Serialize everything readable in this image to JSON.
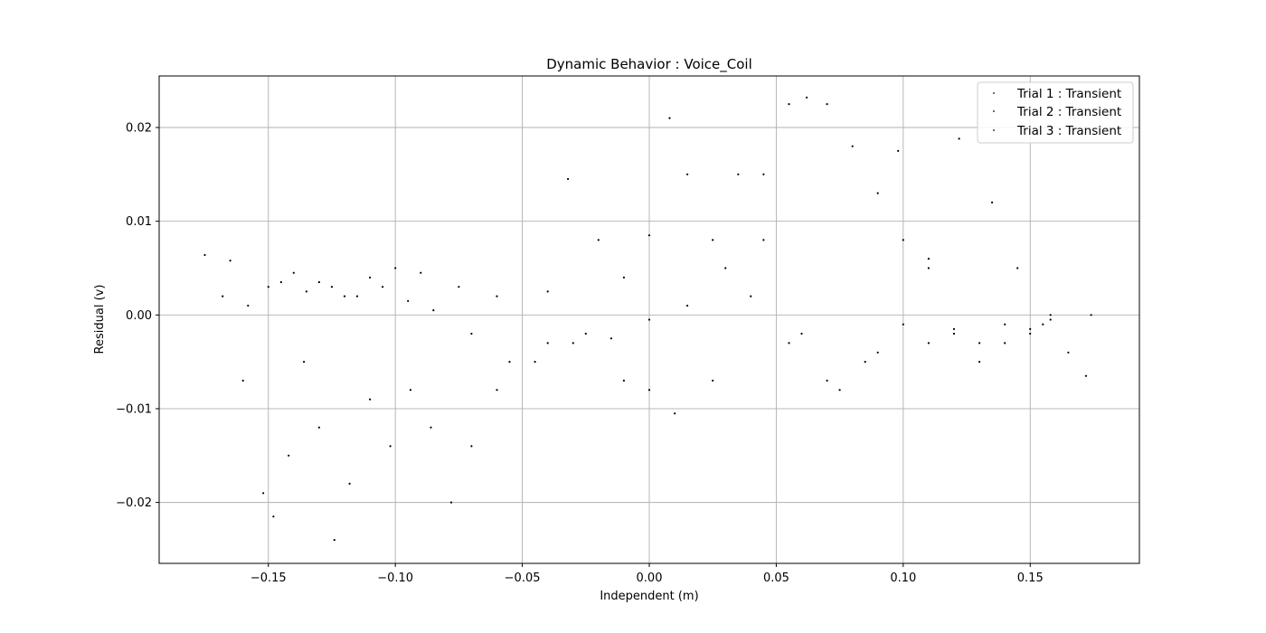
{
  "chart_data": {
    "type": "scatter",
    "title": "Dynamic Behavior : Voice_Coil",
    "xlabel": "Independent (m)",
    "ylabel": "Residual (v)",
    "xlim": [
      -0.193,
      0.193
    ],
    "ylim": [
      -0.0265,
      0.0255
    ],
    "grid": true,
    "legend_position": "top-right",
    "marker": "dot",
    "color": "#000000",
    "x_ticks": [
      {
        "value": -0.15,
        "label": "−0.15"
      },
      {
        "value": -0.1,
        "label": "−0.10"
      },
      {
        "value": -0.05,
        "label": "−0.05"
      },
      {
        "value": 0.0,
        "label": "0.00"
      },
      {
        "value": 0.05,
        "label": "0.05"
      },
      {
        "value": 0.1,
        "label": "0.10"
      },
      {
        "value": 0.15,
        "label": "0.15"
      }
    ],
    "y_ticks": [
      {
        "value": -0.02,
        "label": "−0.02"
      },
      {
        "value": -0.01,
        "label": "−0.01"
      },
      {
        "value": 0.0,
        "label": "0.00"
      },
      {
        "value": 0.01,
        "label": "0.01"
      },
      {
        "value": 0.02,
        "label": "0.02"
      }
    ],
    "series": [
      {
        "name": "Trial 1 : Transient",
        "points": [
          [
            -0.175,
            0.0064
          ],
          [
            -0.168,
            0.002
          ],
          [
            -0.16,
            -0.007
          ],
          [
            -0.152,
            -0.019
          ],
          [
            -0.148,
            -0.0215
          ],
          [
            -0.142,
            -0.015
          ],
          [
            -0.136,
            -0.005
          ],
          [
            -0.13,
            -0.012
          ],
          [
            -0.124,
            -0.024
          ],
          [
            -0.118,
            -0.018
          ],
          [
            -0.11,
            -0.009
          ],
          [
            -0.102,
            -0.014
          ],
          [
            -0.094,
            -0.008
          ],
          [
            -0.086,
            -0.012
          ],
          [
            -0.078,
            -0.02
          ],
          [
            -0.07,
            -0.014
          ],
          [
            -0.06,
            -0.008
          ],
          [
            -0.045,
            -0.005
          ],
          [
            -0.03,
            -0.003
          ],
          [
            -0.015,
            -0.0025
          ],
          [
            0.0,
            -0.0005
          ],
          [
            0.015,
            0.001
          ],
          [
            0.03,
            0.005
          ],
          [
            0.045,
            0.015
          ],
          [
            0.055,
            0.0225
          ],
          [
            0.062,
            0.0232
          ],
          [
            0.07,
            0.0225
          ],
          [
            0.08,
            0.018
          ],
          [
            0.09,
            0.013
          ],
          [
            0.1,
            0.008
          ],
          [
            0.11,
            0.005
          ],
          [
            0.122,
            0.0188
          ],
          [
            0.135,
            0.012
          ],
          [
            0.145,
            0.005
          ],
          [
            0.155,
            -0.001
          ],
          [
            0.165,
            -0.004
          ],
          [
            0.172,
            -0.0065
          ],
          [
            0.174,
            0.0
          ]
        ]
      },
      {
        "name": "Trial 2 : Transient",
        "points": [
          [
            -0.165,
            0.0058
          ],
          [
            -0.158,
            0.001
          ],
          [
            -0.15,
            0.003
          ],
          [
            -0.14,
            0.0045
          ],
          [
            -0.13,
            0.0035
          ],
          [
            -0.12,
            0.002
          ],
          [
            -0.11,
            0.004
          ],
          [
            -0.1,
            0.005
          ],
          [
            -0.09,
            0.0045
          ],
          [
            -0.075,
            0.003
          ],
          [
            -0.06,
            0.002
          ],
          [
            -0.04,
            0.0025
          ],
          [
            -0.032,
            0.0145
          ],
          [
            -0.02,
            0.008
          ],
          [
            -0.01,
            0.004
          ],
          [
            0.0,
            0.0085
          ],
          [
            0.008,
            0.021
          ],
          [
            0.015,
            0.015
          ],
          [
            0.025,
            0.008
          ],
          [
            0.04,
            0.002
          ],
          [
            0.055,
            -0.003
          ],
          [
            0.07,
            -0.007
          ],
          [
            0.085,
            -0.005
          ],
          [
            0.098,
            0.0175
          ],
          [
            0.11,
            0.006
          ],
          [
            0.12,
            -0.002
          ],
          [
            0.13,
            -0.005
          ],
          [
            0.14,
            -0.003
          ],
          [
            0.15,
            -0.0015
          ],
          [
            0.158,
            0.0
          ]
        ]
      },
      {
        "name": "Trial 3 : Transient",
        "points": [
          [
            -0.145,
            0.0035
          ],
          [
            -0.135,
            0.0025
          ],
          [
            -0.125,
            0.003
          ],
          [
            -0.115,
            0.002
          ],
          [
            -0.105,
            0.003
          ],
          [
            -0.095,
            0.0015
          ],
          [
            -0.085,
            0.0005
          ],
          [
            -0.07,
            -0.002
          ],
          [
            -0.055,
            -0.005
          ],
          [
            -0.04,
            -0.003
          ],
          [
            -0.025,
            -0.002
          ],
          [
            -0.01,
            -0.007
          ],
          [
            0.0,
            -0.008
          ],
          [
            0.01,
            -0.0105
          ],
          [
            0.025,
            -0.007
          ],
          [
            0.035,
            0.015
          ],
          [
            0.045,
            0.008
          ],
          [
            0.06,
            -0.002
          ],
          [
            0.075,
            -0.008
          ],
          [
            0.09,
            -0.004
          ],
          [
            0.1,
            -0.001
          ],
          [
            0.11,
            -0.003
          ],
          [
            0.12,
            -0.0015
          ],
          [
            0.13,
            -0.003
          ],
          [
            0.14,
            -0.001
          ],
          [
            0.15,
            -0.002
          ],
          [
            0.158,
            -0.0005
          ]
        ]
      }
    ]
  }
}
